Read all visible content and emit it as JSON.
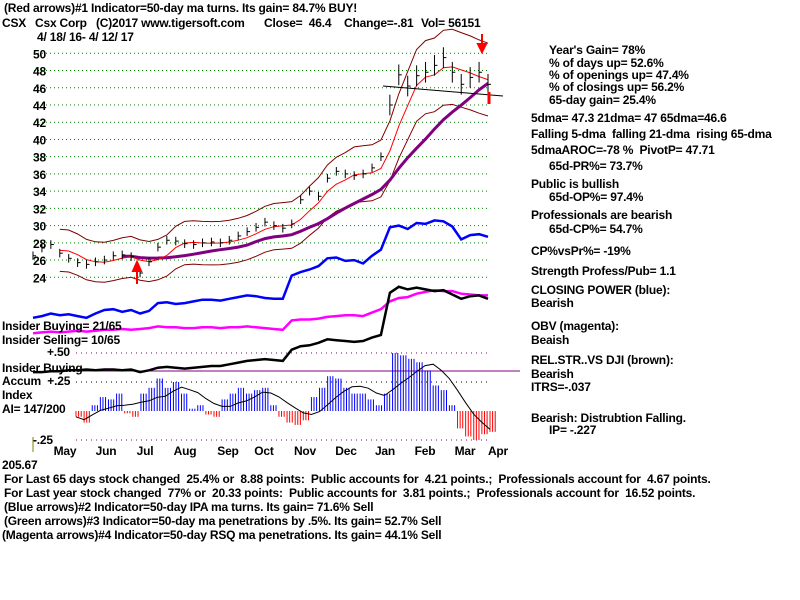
{
  "header": {
    "signal_line": "(Red arrows)#1 Indicator=50-day ma turns. Its gain= 84.7% BUY!",
    "ticker": "CSX",
    "company": "Csx Corp",
    "copyright": "(C)2017 www.tigersoft.com",
    "close": "Close=  46.4",
    "change": "Change=-.81",
    "vol": "Vol= 56151",
    "date_range": "4/ 18/ 16- 4/ 12/ 17"
  },
  "stats": {
    "years_gain": "Year's Gain= 78%",
    "days_up": "% of days up= 52.6%",
    "openings_up": "% of openings up= 47.4%",
    "closings_up": "% of closings up= 56.2%",
    "gain_65d": "65-day gain= 25.4%",
    "dmas": "5dma= 47.3 21dma= 47 65dma=46.6",
    "dma_trend": "Falling 5-dma  falling 21-dma  rising 65-dma",
    "aroc": "5dmaAROC=-78 %  PivotP= 47.71",
    "pr": "65d-PR%= 73.7%",
    "public": "Public is bullish",
    "op": "65d-OP%= 97.4%",
    "professionals": "Professionals are bearish",
    "cp": "65d-CP%= 54.7%",
    "cp_vs_pr": "CP%vsPr%= -19%",
    "strength": "Strength Profess/Pub= 1.1",
    "closing_power_label": "CLOSING POWER (blue):",
    "closing_power_value": "Bearish",
    "obv_label": "OBV (magenta):",
    "obv_value": "Beaish",
    "rs_label": "REL.STR..VS DJI (brown):",
    "rs_value": "Bearish",
    "itrs": "ITRS=-.037",
    "ip_label": "Bearish: Distrubtion Falling.",
    "ip_value": "IP= -.227"
  },
  "left_labels": {
    "insider_buying": "Insider Buying= 21/65",
    "insider_selling": "Insider Selling= 10/65",
    "plus50": "+.50",
    "insider_buying2": "Insider Buying",
    "accum": "Accum  +.25",
    "index": "Index",
    "ai": "AI= 147/200",
    "minus25": "-.25",
    "overlap_value": "205.67"
  },
  "footer": {
    "line1": "For Last 65 days stock changed  25.4% or  8.88 points:  Public accounts for  4.21 points.;  Professionals account for  4.67 points.",
    "line2": "For Last year stock changed  77% or  20.33 points:  Public accounts for  3.81 points.;  Professionals account for  16.52 points.",
    "line3": "(Blue arrows)#2 Indicator=50-day IPA ma turns. Its gain= 71.6% Sell",
    "line4": "(Green arrows)#3 Indicator=50-day ma penetrations by .5%. Its gain= 52.7% Sell",
    "line5": "(Magenta arrows)#4 Indicator=50-day RSQ ma penetrations. Its gain= 44.1% Sell"
  },
  "colors": {
    "price": "#000000",
    "ma21": "#ff0000",
    "ma65": "#800080",
    "bands": "#800000",
    "closing_power": "#0000ff",
    "obv": "#ff00ff",
    "rs": "#000000",
    "grid": "#008000",
    "ai_pos": "#0000ff",
    "ai_neg": "#ff0000"
  },
  "chart_data": {
    "type": "line",
    "title": "CSX Csx Corp 4/18/16 - 4/12/17",
    "y_ticks": [
      50,
      48,
      46,
      44,
      42,
      40,
      38,
      36,
      34,
      32,
      30,
      28,
      26,
      24
    ],
    "ylim": [
      24,
      50
    ],
    "x_ticks": [
      "May",
      "Jun",
      "Jul",
      "Aug",
      "Sep",
      "Oct",
      "Nov",
      "Dec",
      "Jan",
      "Feb",
      "Mar",
      "Apr"
    ],
    "grid": true,
    "weekly_close": [
      26.5,
      27.4,
      27.8,
      26.8,
      26.2,
      25.7,
      25.5,
      25.8,
      26,
      26.5,
      26.6,
      26.4,
      24.5,
      25.8,
      27.5,
      28.3,
      28.2,
      27.9,
      27.8,
      28,
      28.1,
      28,
      28.3,
      28.8,
      29.3,
      29.8,
      30.4,
      30,
      29.7,
      30.2,
      33,
      34,
      33.4,
      35.5,
      36.3,
      36,
      35.8,
      36,
      36.7,
      38,
      44,
      47.5,
      46.2,
      47.4,
      47.8,
      48.6,
      49.5,
      47.8,
      46.4,
      47.2,
      47.8,
      46.4
    ],
    "closing_power": [
      19.3,
      19.5,
      19.8,
      19.6,
      19.7,
      19.5,
      19.3,
      19.8,
      20.2,
      20.3,
      20.0,
      20.2,
      19.8,
      20.1,
      21.0,
      21.1,
      20.9,
      21.0,
      21.2,
      21.4,
      21.4,
      21.3,
      21.5,
      21.7,
      21.9,
      21.8,
      21.6,
      21.5,
      21.5,
      24.2,
      24.6,
      24.9,
      25.3,
      26.2,
      26.3,
      25.9,
      26.0,
      25.6,
      26.5,
      27.2,
      29.8,
      30.0,
      29.6,
      30.3,
      30.2,
      30.6,
      30.5,
      29.9,
      28.4,
      28.9,
      29.0,
      28.7
    ],
    "obv": [
      17.5,
      17.6,
      17.7,
      17.6,
      17.7,
      17.8,
      17.7,
      17.8,
      17.9,
      17.9,
      18.0,
      17.9,
      18.0,
      18.1,
      18.3,
      18.2,
      18.2,
      18.1,
      18.1,
      18.2,
      18.2,
      18.1,
      18.2,
      18.2,
      18.3,
      18.2,
      18.1,
      18.0,
      17.9,
      19.0,
      19.1,
      19.1,
      19.2,
      19.4,
      19.5,
      19.6,
      19.6,
      19.5,
      19.9,
      20.3,
      21.2,
      21.6,
      21.7,
      22.1,
      22.3,
      22.5,
      22.4,
      22.4,
      22.1,
      22.0,
      21.9,
      21.9
    ],
    "rel_strength": [
      13.0,
      13.0,
      13.1,
      13.1,
      13.2,
      13.2,
      13.3,
      13.2,
      13.3,
      13.3,
      13.2,
      13.3,
      13.0,
      13.2,
      13.5,
      13.6,
      13.5,
      13.4,
      13.5,
      13.6,
      13.7,
      13.7,
      13.9,
      14.1,
      14.3,
      14.4,
      14.5,
      14.4,
      14.3,
      15.6,
      16.0,
      16.1,
      16.4,
      16.8,
      16.7,
      16.6,
      16.5,
      16.6,
      17.0,
      17.3,
      22.2,
      22.9,
      22.6,
      22.8,
      22.6,
      22.4,
      22.5,
      22.0,
      21.5,
      21.8,
      21.9,
      21.5
    ],
    "accum_index": [
      -0.05,
      -0.1,
      0.05,
      0.12,
      0.1,
      0.15,
      -0.02,
      -0.05,
      0.15,
      0.2,
      0.28,
      0.2,
      0.25,
      0.15,
      0.02,
      0.05,
      -0.03,
      -0.05,
      0.1,
      0.15,
      0.2,
      0.15,
      0.18,
      0.2,
      0.05,
      -0.05,
      -0.1,
      -0.12,
      -0.08,
      0.12,
      0.2,
      0.3,
      0.28,
      0.2,
      0.15,
      0.15,
      0.1,
      0.05,
      0.15,
      0.5,
      0.48,
      0.45,
      0.42,
      0.35,
      0.22,
      0.18,
      0.05,
      -0.15,
      -0.22,
      -0.25,
      -0.2,
      -0.18
    ],
    "accum_ylim": [
      -0.25,
      0.5
    ]
  }
}
